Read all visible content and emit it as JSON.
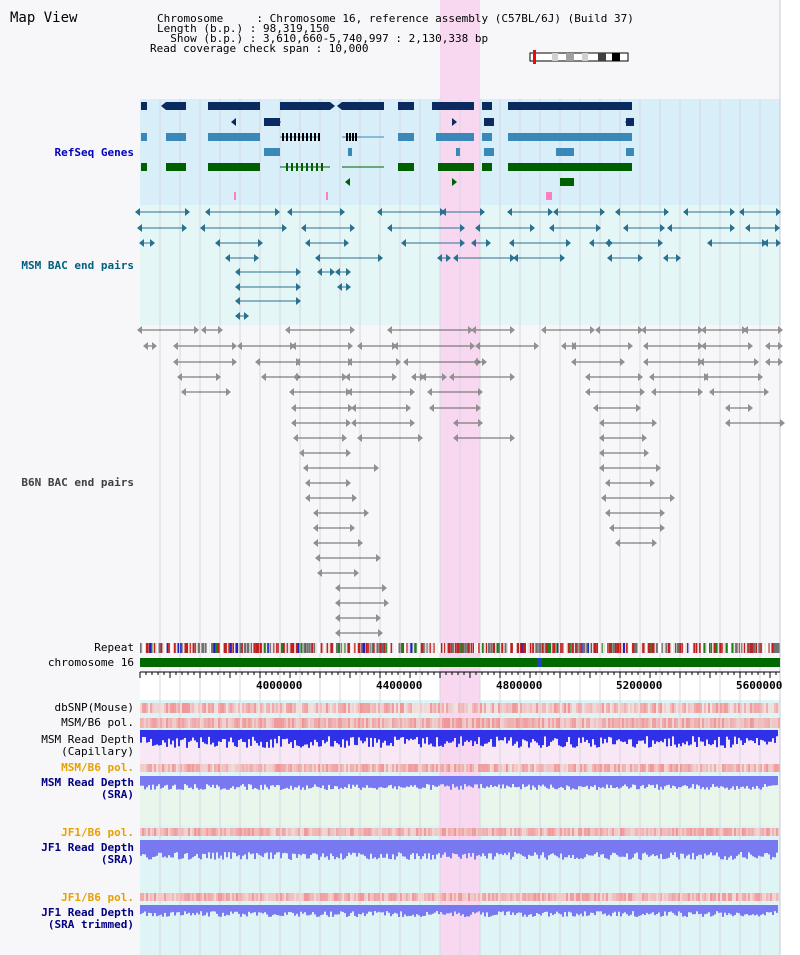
{
  "title": "Map View",
  "header": {
    "line1": "Chromosome     : Chromosome 16, reference assembly (C57BL/6J) (Build 37)",
    "line2": "Length (b.p.) : 98,319,150",
    "line3": "  Show (b.p.) : 3,610,660-5,740,997 : 2,130,338 bp",
    "line4": "Read coverage check span : 10,000"
  },
  "tracks": {
    "refseq": "RefSeq Genes",
    "msm_bac": "MSM BAC end pairs",
    "b6n_bac": "B6N BAC end pairs",
    "repeat": "Repeat",
    "chromosome": "chromosome 16",
    "dbsnp": "dbSNP(Mouse)",
    "msm_pol": "MSM/B6 pol.",
    "msm_depth_cap_1": "MSM Read Depth",
    "msm_depth_cap_2": "(Capillary)",
    "msm_pol_2": "MSM/B6 pol.",
    "msm_depth_sra_1": "MSM Read Depth",
    "msm_depth_sra_2": "(SRA)",
    "jf1_pol": "JF1/B6 pol.",
    "jf1_depth_sra_1": "JF1 Read Depth",
    "jf1_depth_sra_2": "(SRA)",
    "jf1_pol_2": "JF1/B6 pol.",
    "jf1_depth_trim_1": "JF1 Read Depth",
    "jf1_depth_trim_2": "(SRA trimmed)"
  },
  "axis_ticks": [
    "4000000",
    "4400000",
    "4800000",
    "5200000",
    "5600000"
  ],
  "colors": {
    "highlight": "#f8d8f0",
    "refseq_bg": "#d8eef8",
    "msm_bg": "#e4f6f6",
    "navy_gene": "#0a2a60",
    "steel_gene": "#3a88b8",
    "green_gene": "#006000",
    "bac_blue": "#2a7090",
    "bac_gray": "#606060",
    "chrom_green": "#006a00",
    "depth_blue": "#3030e8",
    "depth_light": "#7878f0",
    "pol_red": "#f04848"
  }
}
